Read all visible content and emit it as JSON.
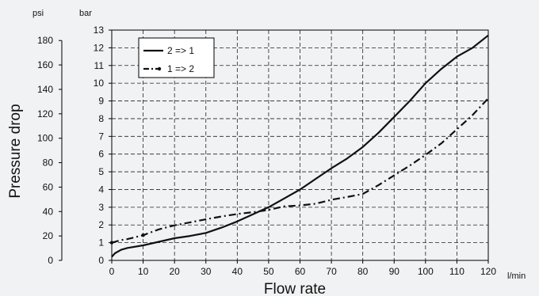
{
  "chart_data": {
    "type": "line",
    "xlabel": "Flow rate",
    "ylabel": "Pressure drop",
    "x_unit": "l/min",
    "y_unit_left": "psi",
    "y_unit_right": "bar",
    "xlim": [
      0,
      120
    ],
    "ylim": [
      0,
      13
    ],
    "x_ticks": [
      0,
      10,
      20,
      30,
      40,
      50,
      60,
      70,
      80,
      90,
      100,
      110,
      120
    ],
    "bar_ticks": [
      0,
      1,
      2,
      3,
      4,
      5,
      6,
      7,
      8,
      9,
      10,
      11,
      12,
      13
    ],
    "psi_ticks": [
      0,
      20,
      40,
      60,
      80,
      100,
      120,
      140,
      160,
      180
    ],
    "grid": true,
    "legend_position": "top-left",
    "series": [
      {
        "name": "2 => 1",
        "style": "solid",
        "x": [
          0,
          1,
          3,
          5,
          10,
          15,
          20,
          25,
          30,
          35,
          40,
          45,
          50,
          55,
          60,
          65,
          70,
          75,
          80,
          85,
          90,
          95,
          100,
          105,
          110,
          115,
          120
        ],
        "y": [
          0.2,
          0.4,
          0.6,
          0.7,
          0.85,
          1.05,
          1.25,
          1.38,
          1.55,
          1.85,
          2.2,
          2.6,
          3.0,
          3.5,
          4.0,
          4.6,
          5.2,
          5.75,
          6.4,
          7.2,
          8.1,
          9.0,
          10.0,
          10.8,
          11.5,
          12.0,
          12.7
        ]
      },
      {
        "name": "1 => 2",
        "style": "dash-dot",
        "x": [
          0,
          1,
          3,
          5,
          10,
          15,
          20,
          25,
          30,
          35,
          40,
          45,
          50,
          55,
          60,
          65,
          70,
          75,
          80,
          85,
          90,
          95,
          100,
          105,
          110,
          115,
          120
        ],
        "y": [
          1.0,
          1.05,
          1.15,
          1.2,
          1.42,
          1.75,
          1.98,
          2.15,
          2.32,
          2.48,
          2.62,
          2.72,
          2.85,
          3.05,
          3.1,
          3.2,
          3.42,
          3.58,
          3.75,
          4.25,
          4.8,
          5.35,
          5.95,
          6.6,
          7.4,
          8.2,
          9.15
        ]
      }
    ]
  }
}
